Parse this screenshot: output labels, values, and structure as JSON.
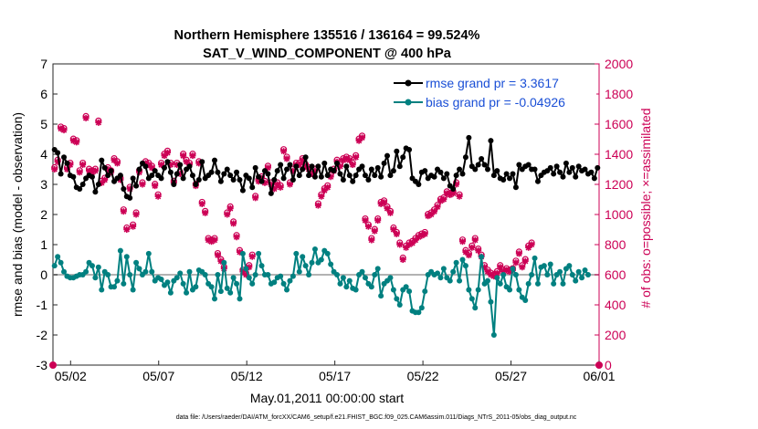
{
  "chart_data": {
    "type": "line",
    "title": "Northern Hemisphere 135516 / 136164 = 99.524%",
    "subtitle": "SAT_V_WIND_COMPONENT @ 400 hPa",
    "xlabel": "May.01,2011 00:00:00 start",
    "ylabel": "rmse and bias (model - observation)",
    "ylabel_right": "# of obs: o=possible; ×=assimilated",
    "footnote": "data file: /Users/raeder/DAI/ATM_forcXX/CAM6_setup/f.e21.FHIST_BGC.f09_025.CAM6assim.011/Diags_NTrS_2011-05/obs_diag_output.nc",
    "x_tick_labels": [
      "05/02",
      "05/07",
      "05/12",
      "05/17",
      "05/22",
      "05/27",
      "06/01"
    ],
    "x_tick_days": [
      1,
      6,
      11,
      16,
      21,
      26,
      31
    ],
    "xlim": [
      0,
      31
    ],
    "ylim": [
      -3,
      7
    ],
    "y_ticks": [
      -3,
      -2,
      -1,
      0,
      1,
      2,
      3,
      4,
      5,
      6,
      7
    ],
    "y2lim": [
      0,
      2000
    ],
    "y2_ticks": [
      0,
      200,
      400,
      600,
      800,
      1000,
      1200,
      1400,
      1600,
      1800,
      2000
    ],
    "legend": {
      "placement": "top-right",
      "entries": [
        {
          "label": "rmse grand pr = 3.3617",
          "color": "#000000"
        },
        {
          "label": "bias grand pr = -0.04926",
          "color": "#008080"
        }
      ]
    },
    "colors": {
      "rmse": "#000000",
      "bias": "#008080",
      "obs_count": "#cc0055",
      "zero_line": "#b3b3b3",
      "legend_text": "#1a4fd6"
    },
    "series": [
      {
        "name": "rmse",
        "values": [
          4.15,
          4.05,
          3.35,
          3.9,
          3.7,
          3.3,
          3.25,
          2.9,
          2.85,
          3.0,
          3.2,
          3.3,
          3.25,
          2.75,
          3.0,
          3.8,
          3.55,
          3.3,
          3.45,
          3.1,
          3.2,
          3.3,
          2.85,
          2.6,
          2.55,
          3.2,
          2.95,
          3.5,
          3.7,
          3.6,
          3.2,
          3.3,
          3.45,
          3.3,
          3.2,
          3.55,
          3.75,
          3.4,
          3.0,
          3.35,
          3.65,
          3.2,
          3.5,
          3.6,
          3.3,
          3.0,
          3.15,
          3.75,
          3.2,
          3.3,
          3.4,
          3.8,
          3.4,
          3.1,
          3.35,
          3.5,
          3.3,
          3.15,
          3.4,
          3.15,
          2.8,
          3.3,
          3.2,
          2.9,
          3.55,
          3.25,
          3.1,
          3.45,
          3.35,
          2.7,
          3.15,
          3.45,
          3.65,
          3.2,
          3.5,
          3.65,
          3.15,
          3.6,
          3.3,
          3.5,
          3.9,
          3.3,
          3.6,
          3.25,
          3.6,
          3.25,
          3.7,
          3.3,
          3.5,
          3.45,
          3.7,
          3.35,
          3.15,
          3.6,
          3.3,
          3.1,
          3.3,
          3.5,
          3.6,
          3.3,
          3.15,
          3.5,
          3.3,
          3.55,
          3.25,
          3.7,
          3.95,
          3.3,
          3.45,
          4.1,
          3.6,
          3.9,
          4.2,
          4.15,
          3.2,
          3.1,
          3.0,
          3.4,
          3.45,
          3.2,
          3.3,
          3.25,
          3.5,
          3.4,
          3.2,
          3.35,
          2.95,
          2.85,
          3.3,
          3.5,
          3.35,
          3.9,
          4.55,
          3.6,
          3.5,
          3.65,
          3.85,
          3.65,
          3.5,
          4.45,
          3.3,
          3.45,
          3.2,
          3.15,
          3.35,
          3.2,
          3.35,
          2.9,
          3.65,
          3.5,
          3.6,
          3.65,
          3.5,
          3.5,
          3.1,
          3.3,
          3.4,
          3.45,
          3.55,
          3.35,
          3.6,
          3.4,
          3.25,
          3.7,
          3.4,
          3.55,
          3.25,
          3.6,
          3.45,
          3.5,
          3.35,
          3.4,
          3.2,
          3.55
        ]
      },
      {
        "name": "bias",
        "values": [
          0.3,
          0.6,
          0.4,
          0.1,
          -0.05,
          -0.1,
          -0.1,
          -0.05,
          0.0,
          0.0,
          0.1,
          0.4,
          0.3,
          -0.1,
          0.25,
          -0.5,
          0.1,
          0.0,
          -0.4,
          -0.4,
          -0.2,
          0.8,
          -0.3,
          0.6,
          0.0,
          -0.5,
          0.4,
          0.2,
          0.0,
          0.1,
          0.7,
          0.1,
          -0.2,
          -0.1,
          -0.15,
          -0.35,
          -0.25,
          -0.6,
          -0.2,
          -0.1,
          0.05,
          -0.3,
          -0.6,
          0.1,
          -0.5,
          -0.4,
          0.15,
          0.1,
          0.0,
          -0.3,
          -0.4,
          -0.8,
          0.0,
          -0.55,
          0.4,
          -0.45,
          -0.6,
          -0.1,
          -0.3,
          -0.8,
          0.7,
          0.2,
          -0.1,
          -0.3,
          0.0,
          0.7,
          0.3,
          0.0,
          0.0,
          -0.3,
          -0.25,
          -0.1,
          -0.05,
          -0.3,
          -0.5,
          -0.2,
          -0.05,
          0.7,
          0.1,
          0.6,
          0.3,
          0.0,
          0.4,
          0.85,
          0.4,
          0.5,
          0.8,
          0.7,
          0.35,
          0.1,
          0.0,
          -0.3,
          -0.1,
          -0.4,
          -0.2,
          -0.45,
          -0.5,
          0.0,
          0.1,
          -0.1,
          -0.3,
          -0.4,
          0.0,
          0.2,
          -0.7,
          -0.3,
          -0.2,
          -0.1,
          -0.5,
          -0.8,
          -1.0,
          -0.5,
          -0.4,
          -0.55,
          -1.2,
          -1.25,
          -1.25,
          -1.1,
          -0.55,
          0.0,
          0.1,
          0.0,
          0.05,
          -0.1,
          0.2,
          -0.1,
          -0.2,
          0.1,
          0.4,
          -0.2,
          0.5,
          0.3,
          -0.5,
          -0.8,
          -1.1,
          -0.5,
          0.6,
          -0.3,
          -0.2,
          -0.9,
          -2.0,
          -0.1,
          -0.3,
          0.0,
          -0.4,
          -0.5,
          0.2,
          0.0,
          -0.5,
          -0.75,
          -0.85,
          -0.3,
          0.0,
          0.55,
          -0.3,
          0.25,
          0.3,
          0.0,
          0.35,
          -0.3,
          0.0,
          0.1,
          -0.3,
          0.2,
          0.3,
          0.0,
          -0.2,
          0.1,
          -0.1,
          0.15,
          0.0
        ]
      },
      {
        "name": "obs_assimilated",
        "values": [
          1300,
          1350,
          1570,
          1560,
          1300,
          1330,
          1490,
          1480,
          1280,
          1330,
          1640,
          1290,
          1280,
          1290,
          1610,
          1210,
          1230,
          1300,
          1280,
          1360,
          1340,
          1230,
          1020,
          900,
          1170,
          920,
          1000,
          1280,
          1200,
          1340,
          1330,
          1310,
          1190,
          1120,
          1330,
          1390,
          1410,
          1330,
          1210,
          1330,
          1270,
          1390,
          1350,
          1330,
          1390,
          1190,
          1340,
          1070,
          1010,
          830,
          820,
          830,
          730,
          690,
          640,
          1000,
          1040,
          940,
          850,
          750,
          620,
          600,
          650,
          720,
          1110,
          1220,
          1240,
          1210,
          1310,
          1200,
          1170,
          1200,
          1180,
          1420,
          1370,
          1200,
          1290,
          1330,
          1330,
          1360,
          1320,
          1300,
          1270,
          1290,
          1060,
          1120,
          1160,
          1180,
          1250,
          1290,
          1350,
          1320,
          1360,
          1370,
          1360,
          1330,
          1380,
          1490,
          1510,
          960,
          920,
          830,
          890,
          960,
          1070,
          1080,
          1040,
          1010,
          900,
          870,
          800,
          700,
          780,
          800,
          810,
          830,
          850,
          860,
          870,
          990,
          1000,
          1020,
          1050,
          1090,
          1100,
          1140,
          1130,
          1140,
          1200,
          1120,
          820,
          750,
          730,
          780,
          830,
          760,
          720,
          650,
          620,
          600,
          590,
          610,
          650,
          620,
          630,
          620,
          630,
          680,
          740,
          650,
          690,
          780,
          800
        ]
      },
      {
        "name": "obs_possible",
        "values": [
          1300,
          1350,
          1570,
          1560,
          1300,
          1330,
          1490,
          1480,
          1280,
          1330,
          1640,
          1290,
          1280,
          1290,
          1610,
          1210,
          1230,
          1300,
          1280,
          1360,
          1340,
          1230,
          1020,
          900,
          1170,
          920,
          1000,
          1280,
          1200,
          1340,
          1330,
          1310,
          1190,
          1120,
          1330,
          1390,
          1410,
          1330,
          1210,
          1330,
          1270,
          1390,
          1350,
          1330,
          1390,
          1190,
          1340,
          1070,
          1010,
          830,
          820,
          830,
          730,
          690,
          640,
          1000,
          1040,
          940,
          850,
          750,
          620,
          600,
          650,
          720,
          1110,
          1220,
          1240,
          1210,
          1310,
          1200,
          1170,
          1200,
          1180,
          1420,
          1370,
          1200,
          1290,
          1330,
          1330,
          1360,
          1320,
          1300,
          1270,
          1290,
          1060,
          1120,
          1160,
          1180,
          1250,
          1290,
          1350,
          1320,
          1360,
          1370,
          1360,
          1330,
          1380,
          1490,
          1510,
          960,
          920,
          830,
          890,
          960,
          1070,
          1080,
          1040,
          1010,
          900,
          870,
          800,
          700,
          780,
          800,
          810,
          830,
          850,
          860,
          870,
          990,
          1000,
          1020,
          1050,
          1090,
          1100,
          1140,
          1130,
          1140,
          1200,
          1120,
          820,
          750,
          730,
          780,
          830,
          760,
          720,
          650,
          620,
          600,
          590,
          610,
          650,
          620,
          630,
          620,
          630,
          680,
          740,
          650,
          690,
          780,
          800
        ]
      }
    ],
    "obs_endpoint_values": [
      0,
      0
    ]
  }
}
